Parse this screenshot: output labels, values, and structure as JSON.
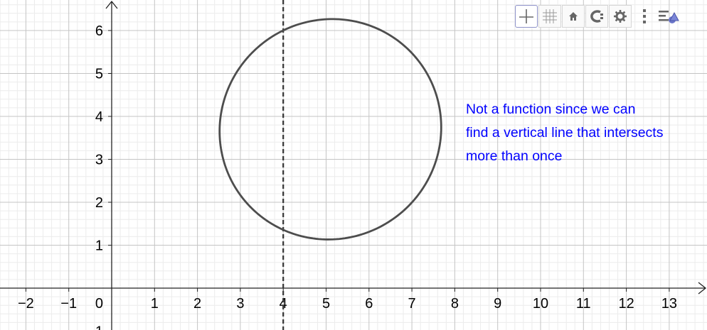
{
  "graph": {
    "x_range": [
      -2.6,
      13.8
    ],
    "y_range": [
      -0.95,
      6.65
    ],
    "x_tick_labels": [
      "−2",
      "−1",
      "0",
      "1",
      "2",
      "3",
      "4",
      "5",
      "6",
      "7",
      "8",
      "9",
      "10",
      "11",
      "12",
      "13"
    ],
    "y_tick_labels": [
      "1",
      "2",
      "3",
      "4",
      "5",
      "6"
    ],
    "y_tick_partial": "1",
    "vertical_line_x": 4,
    "ellipse": {
      "center": [
        5.1,
        3.7
      ],
      "rx": 2.6,
      "ry": 2.55,
      "tilt_deg": 35
    },
    "curve_color": "#4d4d4d",
    "annotation_color": "#0000ff"
  },
  "annotation": {
    "line1": "Not a function since we can",
    "line2": "find a vertical line that intersects",
    "line3": "more than once"
  },
  "toolbar": {
    "buttons": [
      "axes-icon",
      "grid-icon",
      "home-icon",
      "undo-zoom-icon",
      "settings-icon",
      "more-icon",
      "style-bar-icon"
    ]
  }
}
